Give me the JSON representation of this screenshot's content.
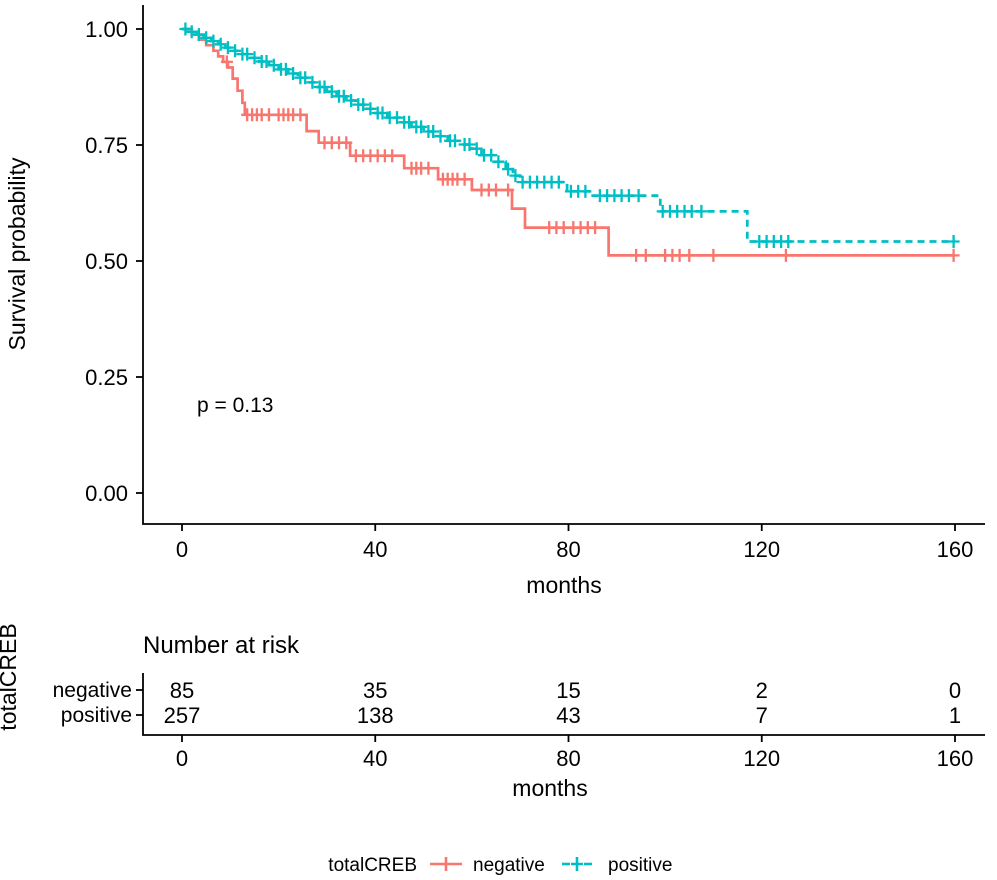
{
  "plot": {
    "y_axis": {
      "title": "Survival probability",
      "ticks": [
        "0.00",
        "0.25",
        "0.50",
        "0.75",
        "1.00"
      ],
      "tick_values": [
        0,
        0.25,
        0.5,
        0.75,
        1
      ]
    },
    "x_axis": {
      "title": "months",
      "ticks": [
        "0",
        "40",
        "80",
        "120",
        "160"
      ],
      "tick_values": [
        0,
        40,
        80,
        120,
        160
      ]
    },
    "p_value": "p = 0.13"
  },
  "chart_data": {
    "type": "line",
    "subtype": "kaplan-meier-survival",
    "title": "",
    "xlabel": "months",
    "ylabel": "Survival probability",
    "xlim": [
      0,
      160
    ],
    "ylim": [
      0,
      1
    ],
    "x_ticks": [
      0,
      40,
      80,
      120,
      160
    ],
    "y_ticks": [
      0,
      0.25,
      0.5,
      0.75,
      1
    ],
    "annotation": "p = 0.13",
    "legend_position": "bottom",
    "series": [
      {
        "name": "negative",
        "color": "#F8766D",
        "linetype": "solid",
        "steps": [
          [
            0,
            1
          ],
          [
            2,
            0.988
          ],
          [
            3.5,
            0.977
          ],
          [
            5,
            0.965
          ],
          [
            6.5,
            0.953
          ],
          [
            7.5,
            0.941
          ],
          [
            8.5,
            0.929
          ],
          [
            9.5,
            0.917
          ],
          [
            10.5,
            0.893
          ],
          [
            11.5,
            0.867
          ],
          [
            12.5,
            0.841
          ],
          [
            13,
            0.815
          ],
          [
            25.8,
            0.78
          ],
          [
            28.3,
            0.755
          ],
          [
            34.8,
            0.727
          ],
          [
            46,
            0.7
          ],
          [
            53,
            0.676
          ],
          [
            60,
            0.653
          ],
          [
            68.3,
            0.613
          ],
          [
            71,
            0.572
          ],
          [
            88.3,
            0.512
          ],
          [
            159.7,
            0.512
          ]
        ],
        "censor_times": [
          9.3,
          13.5,
          14.5,
          15.5,
          16.5,
          18,
          20,
          21,
          22,
          23,
          24.5,
          29.5,
          31,
          32.5,
          34,
          36,
          37.5,
          39,
          40.5,
          42,
          43.5,
          47.5,
          48.5,
          49.5,
          51,
          54,
          55,
          56,
          57,
          58.5,
          62,
          63.5,
          65,
          67.5,
          76,
          77.5,
          79,
          81,
          82.5,
          84,
          85.5,
          94,
          96,
          100,
          101.5,
          103,
          105,
          110,
          125,
          159.7
        ]
      },
      {
        "name": "positive",
        "color": "#00BFC4",
        "linetype": "dashed",
        "steps": [
          [
            0,
            1
          ],
          [
            1.5,
            0.994
          ],
          [
            3,
            0.988
          ],
          [
            4.5,
            0.981
          ],
          [
            6,
            0.974
          ],
          [
            7.5,
            0.967
          ],
          [
            9,
            0.96
          ],
          [
            10.5,
            0.953
          ],
          [
            12,
            0.946
          ],
          [
            14,
            0.938
          ],
          [
            16,
            0.93
          ],
          [
            18,
            0.922
          ],
          [
            20,
            0.913
          ],
          [
            22,
            0.904
          ],
          [
            24,
            0.895
          ],
          [
            26,
            0.885
          ],
          [
            28,
            0.875
          ],
          [
            30,
            0.865
          ],
          [
            32,
            0.855
          ],
          [
            34,
            0.846
          ],
          [
            36,
            0.837
          ],
          [
            38,
            0.828
          ],
          [
            40,
            0.819
          ],
          [
            42.5,
            0.809
          ],
          [
            45,
            0.799
          ],
          [
            47.5,
            0.789
          ],
          [
            50,
            0.779
          ],
          [
            52.5,
            0.769
          ],
          [
            55,
            0.759
          ],
          [
            58,
            0.751
          ],
          [
            60,
            0.742
          ],
          [
            62,
            0.728
          ],
          [
            64.5,
            0.714
          ],
          [
            67,
            0.698
          ],
          [
            68.5,
            0.684
          ],
          [
            70,
            0.67
          ],
          [
            79.7,
            0.65
          ],
          [
            85,
            0.641
          ],
          [
            99,
            0.607
          ],
          [
            117,
            0.542
          ],
          [
            160,
            0.542
          ]
        ],
        "censor_times": [
          0.7,
          2,
          3.5,
          5,
          6.5,
          8,
          9.5,
          11,
          12.5,
          13.5,
          15,
          16.5,
          17.5,
          19,
          20.5,
          21.5,
          23,
          24.5,
          25.5,
          27,
          28.5,
          29.5,
          31,
          32.5,
          33.5,
          35,
          36.5,
          37.5,
          39,
          40.5,
          41.5,
          43,
          44.5,
          46,
          47,
          48.5,
          49.5,
          51,
          52,
          53.5,
          55.5,
          56.5,
          58.5,
          59.5,
          61,
          62.5,
          64,
          65.5,
          67.5,
          69,
          70.5,
          72,
          73.5,
          75,
          76.5,
          78,
          80.5,
          82,
          83.5,
          86.5,
          88,
          89.5,
          91,
          92.5,
          94.5,
          99.5,
          101,
          102.5,
          104,
          105.5,
          107.5,
          119.5,
          121,
          122.5,
          124,
          125.5,
          159.7
        ]
      }
    ]
  },
  "risk_table": {
    "title": "Number at risk",
    "group_label": "totalCREB",
    "x_axis": {
      "title": "months",
      "ticks": [
        "0",
        "40",
        "80",
        "120",
        "160"
      ],
      "tick_values": [
        0,
        40,
        80,
        120,
        160
      ]
    },
    "rows": [
      {
        "label": "negative",
        "color": "#F8766D",
        "counts": [
          "85",
          "35",
          "15",
          "2",
          "0"
        ]
      },
      {
        "label": "positive",
        "color": "#00BFC4",
        "counts": [
          "257",
          "138",
          "43",
          "7",
          "1"
        ]
      }
    ]
  },
  "legend": {
    "title": "totalCREB",
    "items": [
      {
        "label": "negative",
        "color": "#F8766D",
        "linetype": "solid"
      },
      {
        "label": "positive",
        "color": "#00BFC4",
        "linetype": "dashed"
      }
    ]
  },
  "colors": {
    "negative": "#F8766D",
    "positive": "#00BFC4",
    "text": "#000000",
    "background": "#FFFFFF"
  }
}
